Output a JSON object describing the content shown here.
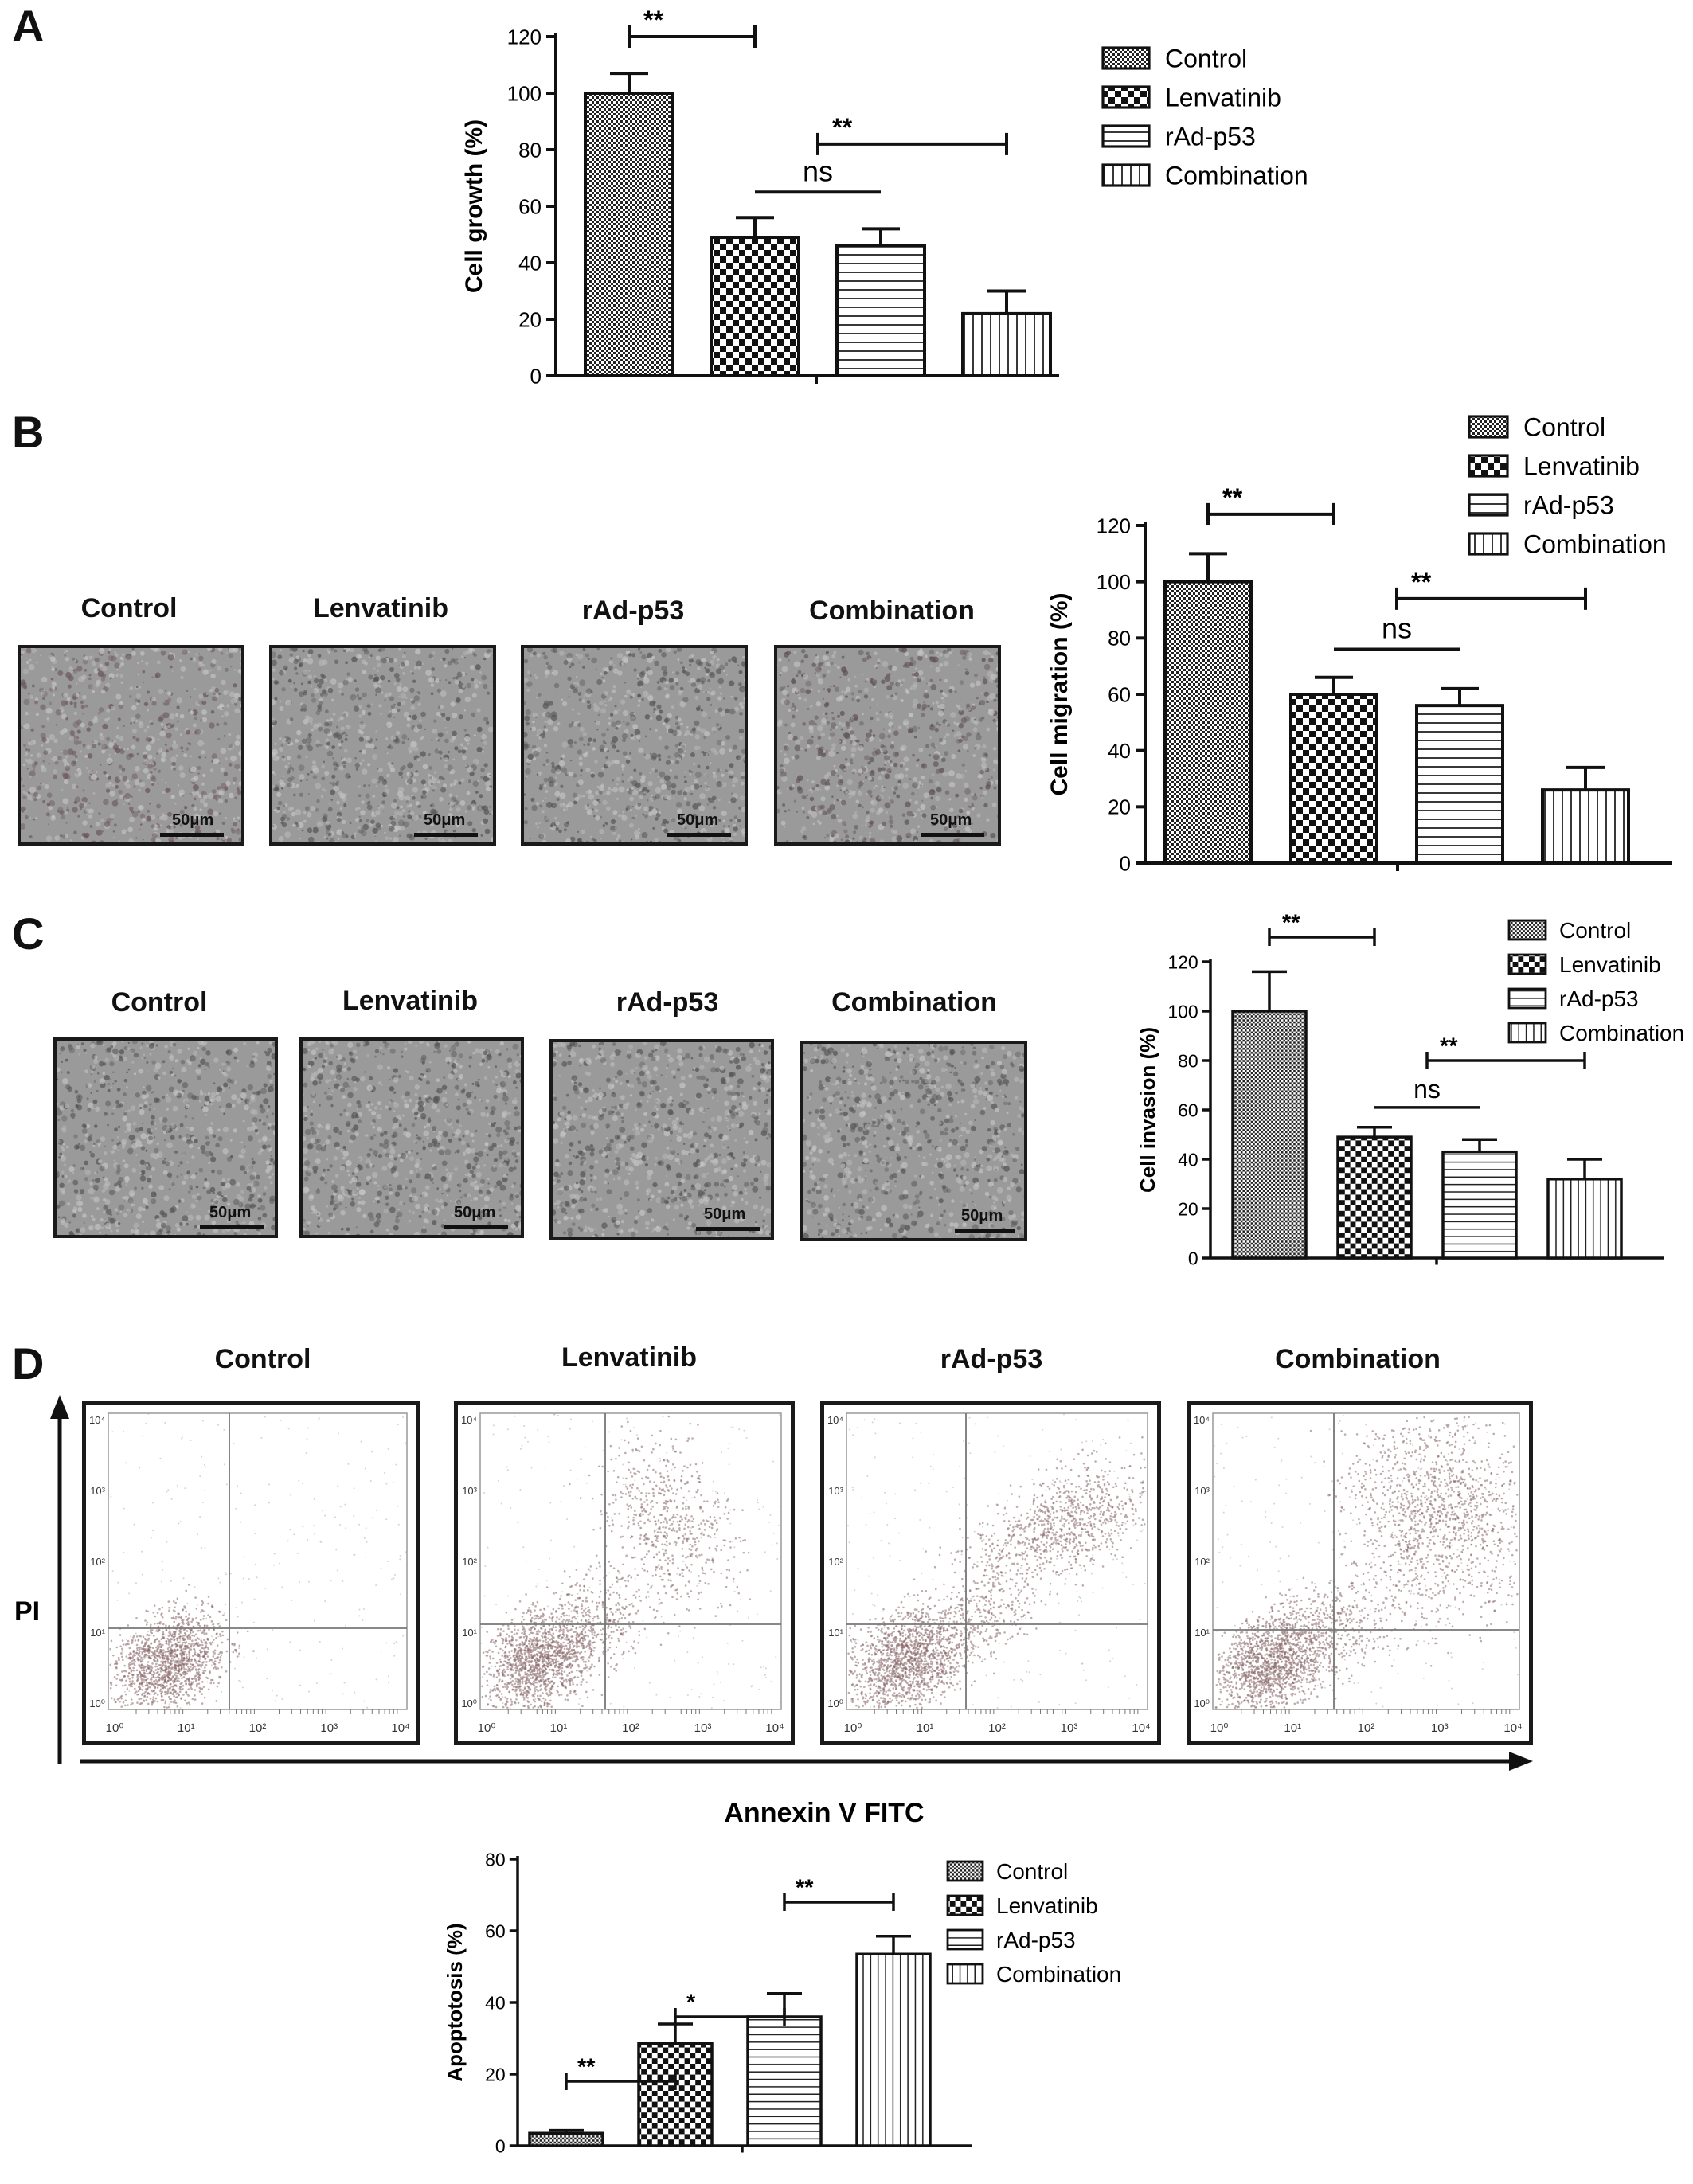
{
  "panels": {
    "A": "A",
    "B": "B",
    "C": "C",
    "D": "D"
  },
  "legend": [
    "Control",
    "Lenvatinib",
    "rAd-p53",
    "Combination"
  ],
  "images": {
    "titles": [
      "Control",
      "Lenvatinib",
      "rAd-p53",
      "Combination"
    ],
    "scale_label": "50μm"
  },
  "flow": {
    "titles": [
      "Control",
      "Lenvatinib",
      "rAd-p53",
      "Combination"
    ],
    "y_axis_label": "PI",
    "x_axis_label": "Annexin V FITC",
    "tick_labels": [
      "10⁰",
      "10¹",
      "10²",
      "10³",
      "10⁴"
    ]
  },
  "colors": {
    "bar_stroke": "#1a1a1a",
    "image_tone": "#9a9a9a",
    "dots": "#8a6a6a"
  },
  "chart_data": [
    {
      "id": "A",
      "type": "bar",
      "categories": [
        "Control",
        "Lenvatinib",
        "rAd-p53",
        "Combination"
      ],
      "values": [
        100,
        49,
        46,
        22
      ],
      "errors": [
        7,
        7,
        6,
        8
      ],
      "ylabel": "Cell growth (%)",
      "ylim": [
        0,
        120
      ],
      "yticks": [
        0,
        20,
        40,
        60,
        80,
        100,
        120
      ],
      "annotations": [
        {
          "text": "**",
          "from": 0,
          "to": 1
        },
        {
          "text": "**",
          "from": 1.5,
          "to": 3
        },
        {
          "text": "ns",
          "from": 1,
          "to": 2
        }
      ]
    },
    {
      "id": "B",
      "type": "bar",
      "categories": [
        "Control",
        "Lenvatinib",
        "rAd-p53",
        "Combination"
      ],
      "values": [
        100,
        60,
        56,
        26
      ],
      "errors": [
        10,
        6,
        6,
        8
      ],
      "ylabel": "Cell migration (%)",
      "ylim": [
        0,
        120
      ],
      "yticks": [
        0,
        20,
        40,
        60,
        80,
        100,
        120
      ],
      "annotations": [
        {
          "text": "**",
          "from": 0,
          "to": 1
        },
        {
          "text": "**",
          "from": 1.5,
          "to": 3
        },
        {
          "text": "ns",
          "from": 1,
          "to": 2
        }
      ]
    },
    {
      "id": "C",
      "type": "bar",
      "categories": [
        "Control",
        "Lenvatinib",
        "rAd-p53",
        "Combination"
      ],
      "values": [
        100,
        49,
        43,
        32
      ],
      "errors": [
        16,
        4,
        5,
        8
      ],
      "ylabel": "Cell invasion (%)",
      "ylim": [
        0,
        120
      ],
      "yticks": [
        0,
        20,
        40,
        60,
        80,
        100,
        120
      ],
      "annotations": [
        {
          "text": "**",
          "from": 0,
          "to": 1
        },
        {
          "text": "**",
          "from": 1.5,
          "to": 3
        },
        {
          "text": "ns",
          "from": 1,
          "to": 2
        }
      ]
    },
    {
      "id": "D",
      "type": "bar",
      "categories": [
        "Control",
        "Lenvatinib",
        "rAd-p53",
        "Combination"
      ],
      "values": [
        3.5,
        28.5,
        36,
        53.5
      ],
      "errors": [
        0.8,
        5.5,
        6.5,
        5
      ],
      "ylabel": "Apoptotosis (%)",
      "ylim": [
        0,
        80
      ],
      "yticks": [
        0,
        20,
        40,
        60,
        80
      ],
      "annotations": [
        {
          "text": "**",
          "from": 0,
          "to": 1
        },
        {
          "text": "*",
          "from": 1,
          "to": 2
        },
        {
          "text": "**",
          "from": 2,
          "to": 3
        }
      ]
    }
  ]
}
